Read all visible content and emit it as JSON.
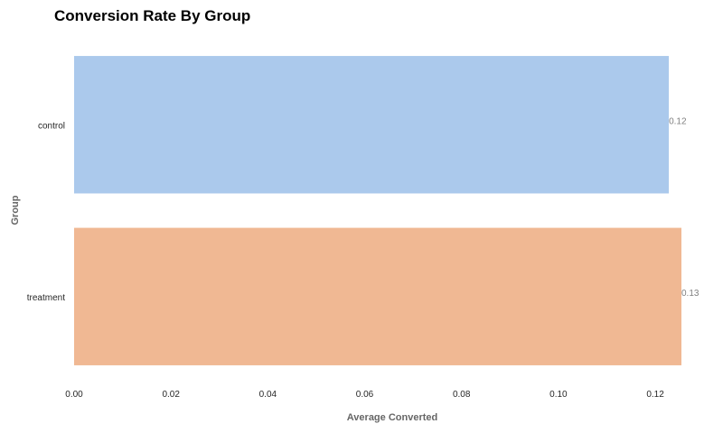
{
  "chart_data": {
    "type": "bar",
    "orientation": "horizontal",
    "title": "Conversion Rate By Group",
    "xlabel": "Average Converted",
    "ylabel": "Group",
    "categories": [
      "control",
      "treatment"
    ],
    "values": [
      0.1228,
      0.1254
    ],
    "value_labels": [
      "0.12",
      "0.13"
    ],
    "colors": [
      "#abc9ec",
      "#f0b893"
    ],
    "xlim": [
      0,
      0.1254
    ],
    "xticks": [
      0.0,
      0.02,
      0.04,
      0.06,
      0.08,
      0.1,
      0.12
    ],
    "xtick_labels": [
      "0.00",
      "0.02",
      "0.04",
      "0.06",
      "0.08",
      "0.10",
      "0.12"
    ],
    "grid": false,
    "legend": "none"
  }
}
